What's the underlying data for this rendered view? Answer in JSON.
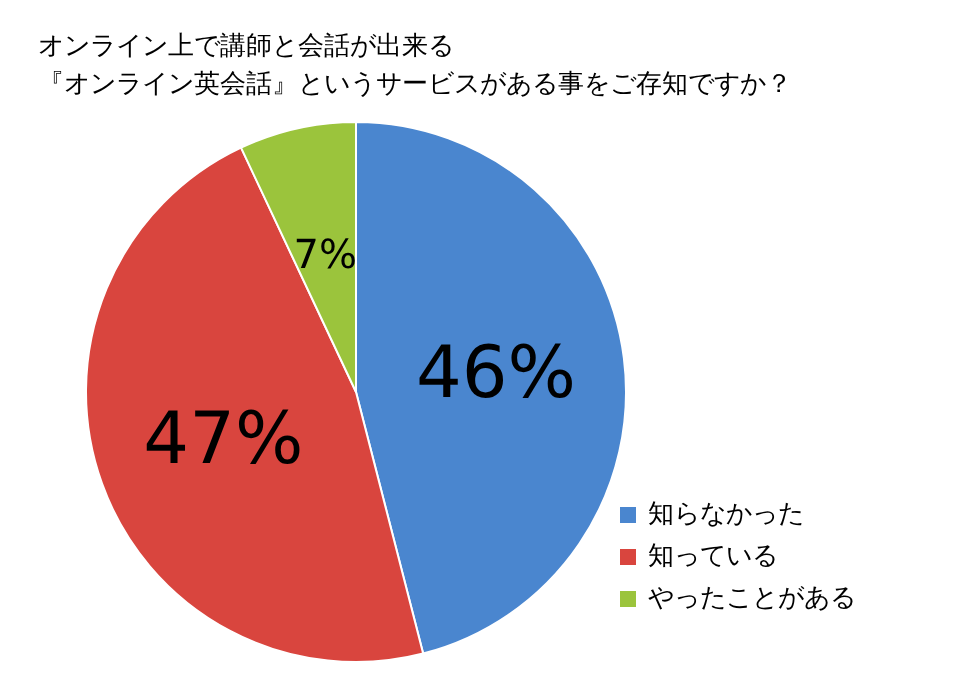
{
  "chart_data": {
    "type": "pie",
    "title": "オンライン上で講師と会話が出来る",
    "subtitle": "『オンライン英会話』というサービスがある事をご存知ですか？",
    "categories": [
      "知らなかった",
      "知っている",
      "やったことがある"
    ],
    "values": [
      46,
      47,
      7
    ],
    "value_labels": [
      "46%",
      "47%",
      "7%"
    ],
    "colors": [
      "#4a86cf",
      "#d9453e",
      "#9bc43c"
    ],
    "legend": "bottom right"
  }
}
